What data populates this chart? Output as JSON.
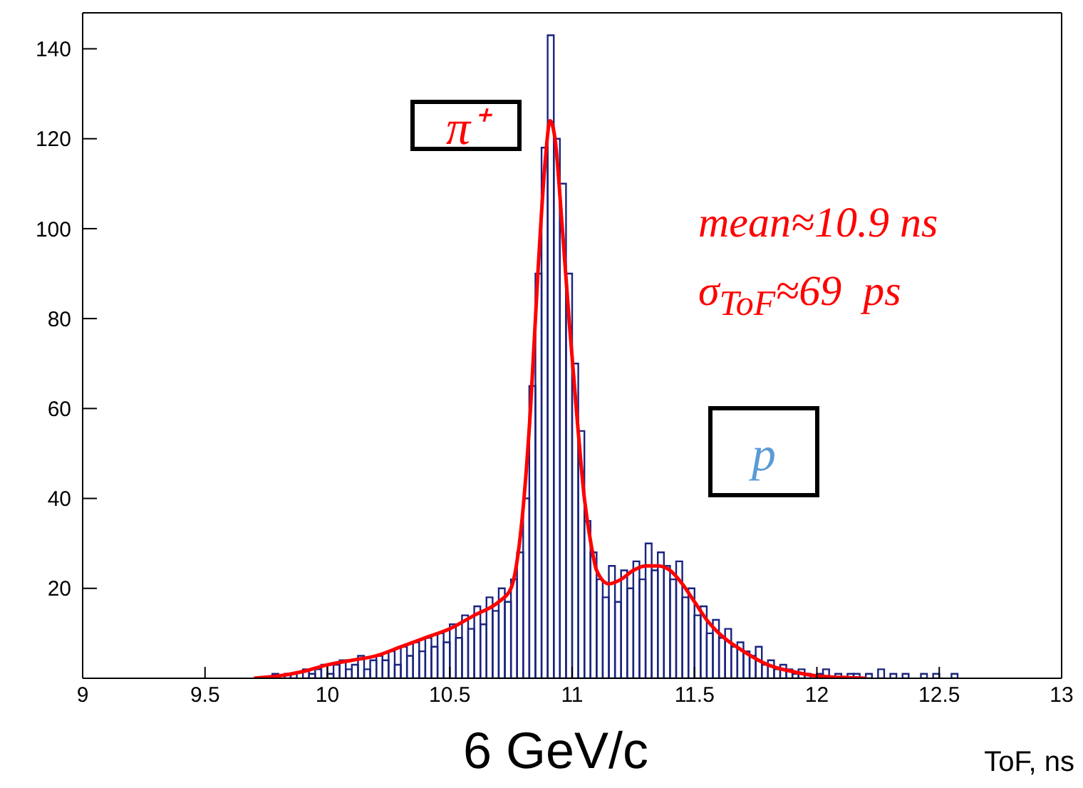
{
  "chart_data": {
    "type": "histogram",
    "xlabel": "ToF, ns",
    "xlim": [
      9,
      13
    ],
    "xticks": [
      9,
      9.5,
      10,
      10.5,
      11,
      11.5,
      12,
      12.5,
      13
    ],
    "ylim": [
      0,
      148
    ],
    "yticks": [
      20,
      40,
      60,
      80,
      100,
      120,
      140
    ],
    "annotations": [
      "π⁺",
      "p",
      "mean≈10.9 ns",
      "σ$_{ToF}$≈69  ps",
      "6 GeV/c"
    ],
    "series": [
      {
        "type": "histogram",
        "color": "#1a237e",
        "bins": [
          9.7,
          9.725,
          9.75,
          9.775,
          9.8,
          9.825,
          9.85,
          9.875,
          9.9,
          9.925,
          9.95,
          9.975,
          10,
          10.025,
          10.05,
          10.075,
          10.1,
          10.125,
          10.15,
          10.175,
          10.2,
          10.225,
          10.25,
          10.275,
          10.3,
          10.325,
          10.35,
          10.375,
          10.4,
          10.425,
          10.45,
          10.475,
          10.5,
          10.525,
          10.55,
          10.575,
          10.6,
          10.625,
          10.65,
          10.675,
          10.7,
          10.725,
          10.75,
          10.775,
          10.8,
          10.825,
          10.85,
          10.875,
          10.9,
          10.925,
          10.95,
          10.975,
          11,
          11.025,
          11.05,
          11.075,
          11.1,
          11.125,
          11.15,
          11.175,
          11.2,
          11.225,
          11.25,
          11.275,
          11.3,
          11.325,
          11.35,
          11.375,
          11.4,
          11.425,
          11.45,
          11.475,
          11.5,
          11.525,
          11.55,
          11.575,
          11.6,
          11.625,
          11.65,
          11.675,
          11.7,
          11.725,
          11.75,
          11.775,
          11.8,
          11.825,
          11.85,
          11.875,
          11.9,
          11.925,
          11.95,
          11.975,
          12,
          12.025,
          12.05,
          12.075,
          12.1,
          12.125,
          12.15,
          12.175,
          12.2,
          12.225,
          12.25,
          12.275,
          12.3,
          12.325,
          12.35,
          12.375,
          12.4,
          12.425,
          12.45,
          12.475,
          12.5,
          12.525,
          12.55,
          12.575,
          12.6,
          12.625,
          12.65,
          12.675,
          12.7
        ],
        "values": [
          0,
          0,
          0,
          1,
          0,
          1,
          1,
          0,
          2,
          1,
          2,
          3,
          1,
          3,
          4,
          2,
          3,
          5,
          2,
          4,
          5,
          4,
          6,
          3,
          7,
          5,
          8,
          6,
          9,
          7,
          10,
          8,
          12,
          9,
          14,
          11,
          16,
          12,
          18,
          15,
          20,
          17,
          22,
          28,
          40,
          65,
          90,
          118,
          143,
          120,
          110,
          90,
          70,
          55,
          35,
          28,
          22,
          18,
          25,
          17,
          24,
          20,
          26,
          22,
          30,
          24,
          28,
          25,
          22,
          26,
          18,
          20,
          14,
          16,
          10,
          13,
          9,
          11,
          7,
          8,
          6,
          5,
          7,
          3,
          4,
          2,
          3,
          2,
          1,
          2,
          1,
          0,
          1,
          2,
          0,
          1,
          0,
          1,
          1,
          0,
          1,
          0,
          2,
          0,
          1,
          0,
          1,
          0,
          0,
          1,
          0,
          1,
          0,
          0,
          1,
          0,
          0,
          0,
          0,
          0
        ]
      },
      {
        "type": "line",
        "color": "#ff0000",
        "x": [
          9.7,
          9.8,
          9.9,
          10,
          10.1,
          10.2,
          10.3,
          10.4,
          10.5,
          10.6,
          10.7,
          10.75,
          10.78,
          10.8,
          10.83,
          10.86,
          10.89,
          10.91,
          10.93,
          10.96,
          10.99,
          11.02,
          11.05,
          11.08,
          11.1,
          11.15,
          11.2,
          11.25,
          11.3,
          11.35,
          11.4,
          11.45,
          11.5,
          11.55,
          11.6,
          11.7,
          11.8,
          11.9,
          12,
          12.1,
          12.2
        ],
        "values": [
          0,
          0.5,
          1.5,
          3,
          4,
          5,
          7,
          9,
          11,
          14,
          17,
          20,
          28,
          38,
          60,
          90,
          115,
          124,
          120,
          100,
          78,
          58,
          40,
          29,
          24,
          21,
          22,
          24,
          25,
          25,
          24,
          21,
          17,
          13,
          10,
          6,
          3,
          1.5,
          0.5,
          0.2,
          0
        ]
      }
    ]
  }
}
